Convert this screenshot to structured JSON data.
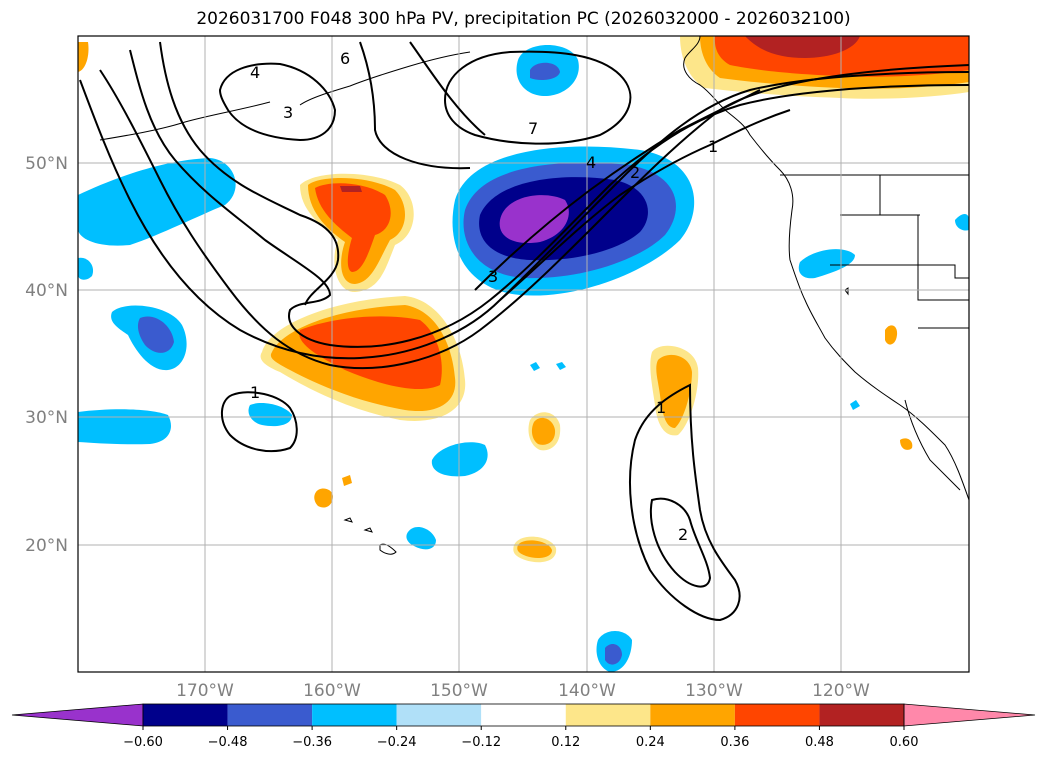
{
  "title": "2026031700 F048 300 hPa PV, precipitation PC (2026032000 - 2026032100)",
  "axes": {
    "lon_labels": [
      "170°W",
      "160°W",
      "150°W",
      "140°W",
      "130°W",
      "120°W"
    ],
    "lat_labels": [
      "50°N",
      "40°N",
      "30°N",
      "20°N"
    ]
  },
  "colorbar": {
    "levels": [
      "−0.60",
      "−0.48",
      "−0.36",
      "−0.24",
      "−0.12",
      "0.12",
      "0.24",
      "0.36",
      "0.48",
      "0.60"
    ],
    "colors": [
      "#9932cc",
      "#00008b",
      "#3a5bcf",
      "#00bfff",
      "#b0e0f8",
      "#ffffff",
      "#fde68a",
      "#ffa500",
      "#ff4500",
      "#b22222",
      "#ff88aa"
    ]
  },
  "pv_contour_labels": [
    "6",
    "4",
    "3",
    "7",
    "4",
    "2",
    "1",
    "3",
    "1",
    "1",
    "2"
  ],
  "colors": {
    "ocean": "#ffffff",
    "grid": "#b0b0b0",
    "coast": "#000000"
  }
}
